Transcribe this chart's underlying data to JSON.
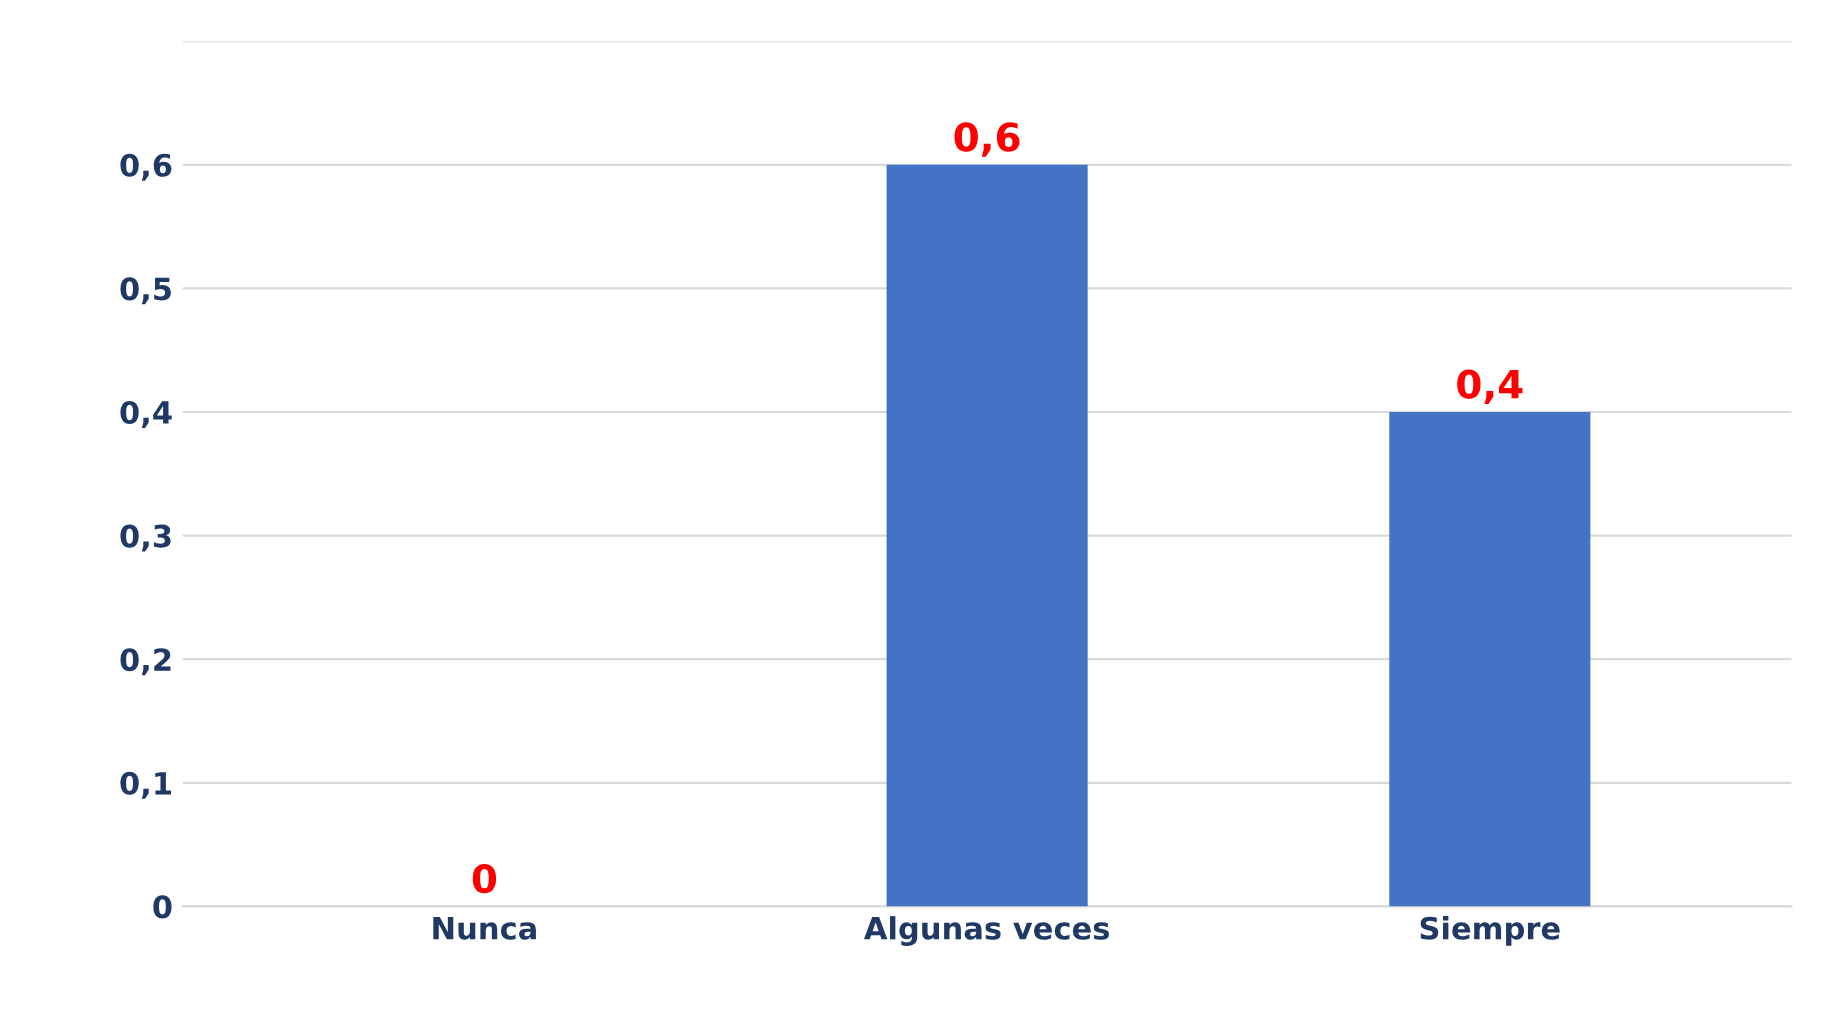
{
  "chart_data": {
    "type": "bar",
    "categories": [
      "Nunca",
      "Algunas veces",
      "Siempre"
    ],
    "values": [
      0,
      0.6,
      0.4
    ],
    "value_labels": [
      "0",
      "0,6",
      "0,4"
    ],
    "color": "#4472c4",
    "ylim": [
      0,
      0.7
    ],
    "yticks": [
      {
        "value": 0,
        "label": "0"
      },
      {
        "value": 0.1,
        "label": "0,1"
      },
      {
        "value": 0.2,
        "label": "0,2"
      },
      {
        "value": 0.3,
        "label": "0,3"
      },
      {
        "value": 0.4,
        "label": "0,4"
      },
      {
        "value": 0.5,
        "label": "0,5"
      },
      {
        "value": 0.6,
        "label": "0,6"
      },
      {
        "value": 0.7,
        "label": null
      }
    ],
    "grid": "y",
    "legend": false
  }
}
